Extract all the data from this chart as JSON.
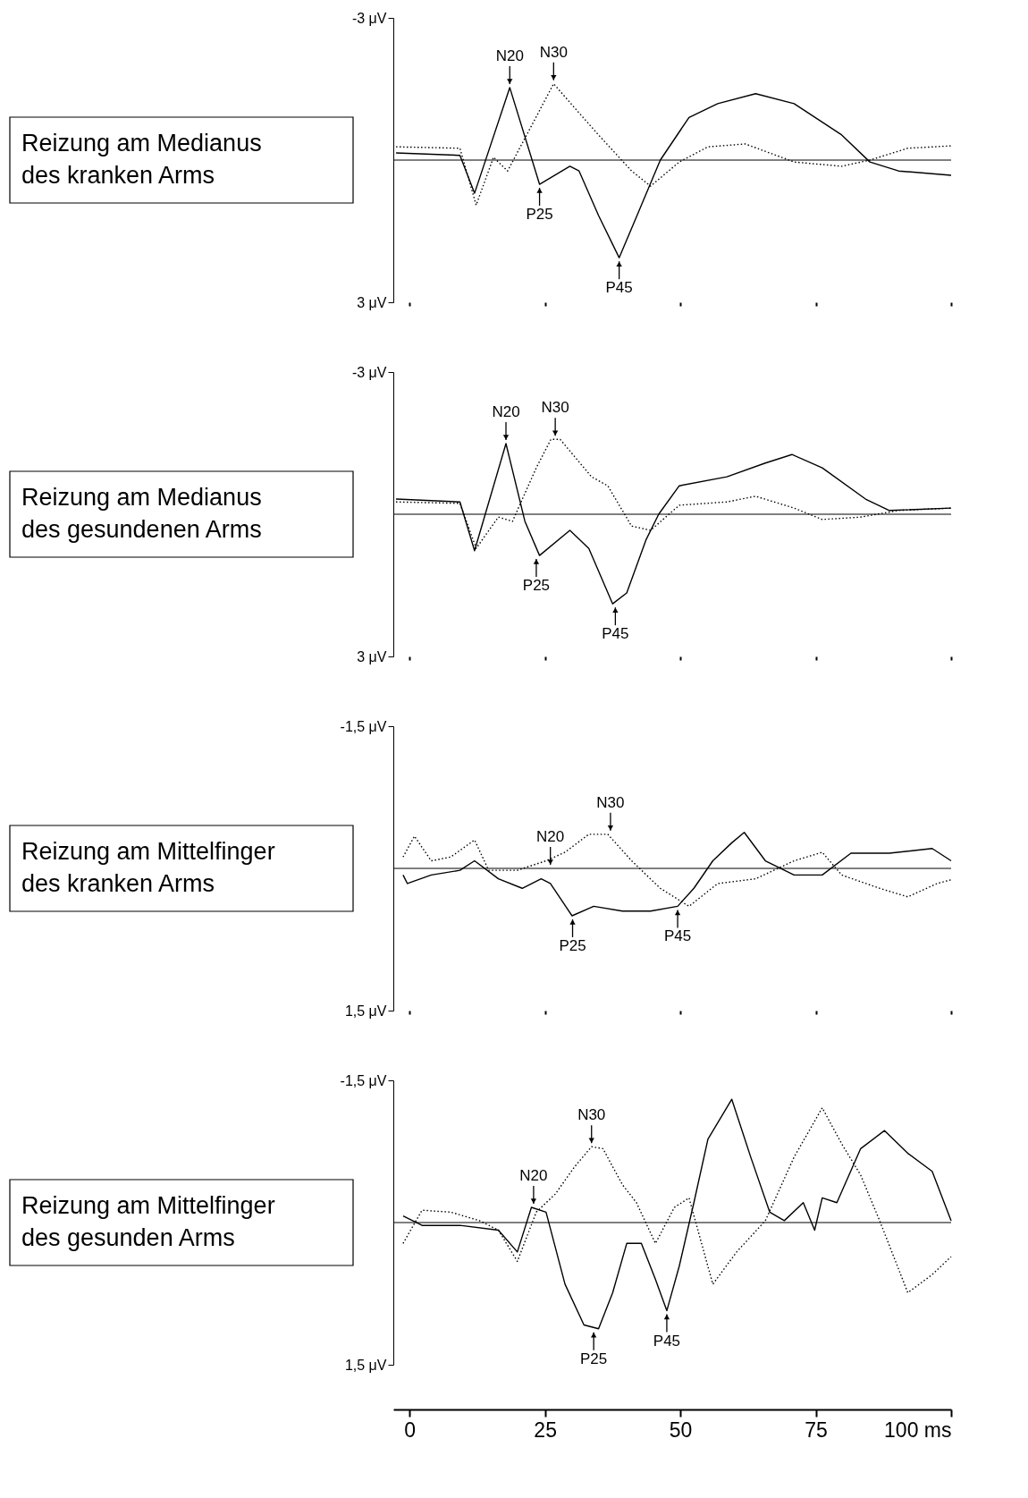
{
  "chart_data": [
    {
      "type": "line",
      "xlim": [
        -3,
        100
      ],
      "xticks": [
        0,
        25,
        50,
        75,
        100
      ],
      "ylim": [
        3,
        -3
      ],
      "yticks": [
        {
          "value": -3,
          "label": "-3 μV"
        },
        {
          "value": 3,
          "label": "3 μV"
        }
      ],
      "tick_labels": "y",
      "legend": false,
      "grid": false,
      "ref_lines": [
        {
          "axis": "y",
          "value": 0
        }
      ],
      "annotations": [
        "Reizung am Medianus\ndes kranken Arms",
        {
          "text": "N20",
          "x": 18.5,
          "y": -1.53
        },
        {
          "text": "N30",
          "x": 26.6,
          "y": -1.61
        },
        {
          "text": "P25",
          "x": 24,
          "y": 0.51
        },
        {
          "text": "P45",
          "x": 38.7,
          "y": 2.06
        }
      ],
      "series": [
        {
          "color": "#000000",
          "line_style": "solid",
          "x": [
            -2.5,
            9.3,
            12,
            18.5,
            24,
            29.6,
            31.3,
            34.9,
            38.7,
            42,
            46.3,
            51.6,
            56.9,
            63.9,
            71,
            79.8,
            85,
            90.3,
            100
          ],
          "values": [
            -0.15,
            -0.1,
            0.7,
            -1.53,
            0.51,
            0.13,
            0.23,
            1.17,
            2.06,
            1.17,
            0,
            -0.9,
            -1.19,
            -1.4,
            -1.19,
            -0.53,
            0.04,
            0.23,
            0.32
          ]
        },
        {
          "color": "#000000",
          "line_style": "dotted",
          "x": [
            -2.5,
            9.3,
            12.3,
            15.5,
            18.1,
            22.5,
            26.6,
            30.5,
            34.9,
            41,
            44.5,
            49.8,
            55.1,
            62,
            71,
            79.8,
            85,
            92,
            100
          ],
          "values": [
            -0.28,
            -0.25,
            0.95,
            -0.06,
            0.23,
            -0.72,
            -1.61,
            -1.1,
            -0.53,
            0.23,
            0.55,
            0.04,
            -0.28,
            -0.34,
            0.04,
            0.13,
            0,
            -0.25,
            -0.3
          ]
        }
      ]
    },
    {
      "type": "line",
      "xlim": [
        -3,
        100
      ],
      "xticks": [
        0,
        25,
        50,
        75,
        100
      ],
      "ylim": [
        3,
        -3
      ],
      "yticks": [
        {
          "value": -3,
          "label": "-3 μV"
        },
        {
          "value": 3,
          "label": "3 μV"
        }
      ],
      "tick_labels": "y",
      "legend": false,
      "grid": false,
      "ref_lines": [
        {
          "axis": "y",
          "value": 0
        }
      ],
      "annotations": [
        "Reizung am Medianus\ndes gesundenen Arms",
        {
          "text": "N20",
          "x": 17.8,
          "y": -1.49
        },
        {
          "text": "N30",
          "x": 26.9,
          "y": -1.58
        },
        {
          "text": "P25",
          "x": 23.4,
          "y": 0.87
        },
        {
          "text": "P45",
          "x": 38,
          "y": 1.89
        }
      ],
      "series": [
        {
          "color": "#000000",
          "line_style": "solid",
          "x": [
            -2.5,
            9.3,
            12,
            17.8,
            21.3,
            24,
            29.6,
            33.1,
            37.5,
            40.1,
            43.7,
            46,
            49.8,
            58.6,
            65.7,
            70.6,
            76.2,
            84.2,
            88.6,
            100
          ],
          "values": [
            -0.32,
            -0.26,
            0.77,
            -1.49,
            0.15,
            0.87,
            0.34,
            0.72,
            1.89,
            1.66,
            0.53,
            0,
            -0.6,
            -0.79,
            -1.08,
            -1.26,
            -0.98,
            -0.32,
            -0.08,
            -0.13
          ]
        },
        {
          "color": "#000000",
          "line_style": "dotted",
          "x": [
            -2.5,
            9.3,
            12.3,
            16.4,
            19,
            23.4,
            26.1,
            27.8,
            33.6,
            36.6,
            41,
            44.5,
            49.8,
            58.6,
            63.9,
            71,
            76.2,
            83.3,
            90.3,
            100
          ],
          "values": [
            -0.26,
            -0.23,
            0.72,
            0.06,
            0.15,
            -0.98,
            -1.58,
            -1.58,
            -0.79,
            -0.6,
            0.25,
            0.34,
            -0.19,
            -0.26,
            -0.38,
            -0.13,
            0.11,
            0.06,
            -0.08,
            -0.13
          ]
        }
      ]
    },
    {
      "type": "line",
      "xlim": [
        -3,
        100
      ],
      "xticks": [
        0,
        25,
        50,
        75,
        100
      ],
      "ylim": [
        1.5,
        -1.5
      ],
      "yticks": [
        {
          "value": -1.5,
          "label": "-1,5 μV"
        },
        {
          "value": 1.5,
          "label": "1,5 μV"
        }
      ],
      "tick_labels": "y",
      "legend": false,
      "grid": false,
      "ref_lines": [
        {
          "axis": "y",
          "value": 0
        }
      ],
      "annotations": [
        "Reizung am Mittelfinger\ndes kranken Arms",
        {
          "text": "N20",
          "x": 26,
          "y": 0
        },
        {
          "text": "N30",
          "x": 37.1,
          "y": -0.36
        },
        {
          "text": "P25",
          "x": 30.1,
          "y": 0.5
        },
        {
          "text": "P45",
          "x": 49.5,
          "y": 0.4
        }
      ],
      "series": [
        {
          "color": "#000000",
          "line_style": "solid",
          "x": [
            -1.2,
            -0.4,
            4,
            9.3,
            12,
            16.4,
            20.8,
            24.3,
            26,
            30,
            34,
            39.3,
            44.5,
            49.5,
            52.5,
            56,
            59.5,
            61.8,
            65.7,
            71,
            76.2,
            81.5,
            88.6,
            96.5,
            100
          ],
          "values": [
            0.07,
            0.16,
            0.07,
            0.02,
            -0.08,
            0.11,
            0.21,
            0.11,
            0.16,
            0.5,
            0.4,
            0.45,
            0.45,
            0.4,
            0.21,
            -0.08,
            -0.27,
            -0.38,
            -0.08,
            0.07,
            0.07,
            -0.16,
            -0.16,
            -0.21,
            -0.08
          ]
        },
        {
          "color": "#000000",
          "line_style": "dotted",
          "x": [
            -1.2,
            0.9,
            4,
            7.6,
            12,
            14.6,
            19.9,
            25.2,
            28.7,
            33.1,
            36.6,
            41,
            46.3,
            51.6,
            56.9,
            63.9,
            71,
            76.2,
            79.8,
            86.8,
            92,
            97.4,
            100
          ],
          "values": [
            -0.12,
            -0.34,
            -0.08,
            -0.12,
            -0.3,
            0.02,
            0.02,
            -0.08,
            -0.17,
            -0.36,
            -0.36,
            -0.08,
            0.21,
            0.4,
            0.16,
            0.11,
            -0.08,
            -0.17,
            0.07,
            0.21,
            0.3,
            0.16,
            0.12
          ]
        }
      ]
    },
    {
      "type": "line",
      "xlim": [
        -3,
        100
      ],
      "ylim": [
        1.5,
        -1.5
      ],
      "yticks": [
        {
          "value": -1.5,
          "label": "-1,5 μV"
        },
        {
          "value": 1.5,
          "label": "1,5 μV"
        }
      ],
      "xticks": [
        0,
        25,
        50,
        75,
        {
          "value": 100,
          "label": "100 ms"
        }
      ],
      "legend": false,
      "grid": false,
      "ref_lines": [
        {
          "axis": "y",
          "value": 0
        }
      ],
      "annotations": [
        "Reizung am Mittelfinger\ndes gesunden Arms",
        {
          "text": "N20",
          "x": 22.9,
          "y": -0.16
        },
        {
          "text": "N30",
          "x": 33.6,
          "y": -0.8
        },
        {
          "text": "P25",
          "x": 34,
          "y": 1.12
        },
        {
          "text": "P45",
          "x": 47.5,
          "y": 0.93
        }
      ],
      "series": [
        {
          "color": "#000000",
          "line_style": "solid",
          "x": [
            -1.2,
            2.3,
            9.3,
            16.4,
            19.9,
            22.5,
            25.2,
            28.7,
            32.2,
            34.9,
            37.5,
            40.1,
            42.8,
            45.4,
            47.5,
            49.8,
            52.5,
            55.1,
            59.5,
            63,
            66.5,
            69.2,
            72.7,
            74.8,
            76.2,
            78.9,
            83.3,
            87.7,
            92,
            96.5,
            100
          ],
          "values": [
            -0.07,
            0.03,
            0.03,
            0.08,
            0.31,
            -0.16,
            -0.11,
            0.65,
            1.08,
            1.12,
            0.74,
            0.22,
            0.22,
            0.6,
            0.93,
            0.46,
            -0.21,
            -0.88,
            -1.3,
            -0.69,
            -0.11,
            -0.02,
            -0.21,
            0.08,
            -0.26,
            -0.21,
            -0.78,
            -0.97,
            -0.73,
            -0.54,
            -0.02
          ]
        },
        {
          "color": "#000000",
          "line_style": "dotted",
          "x": [
            -1.2,
            2.3,
            7.6,
            12.9,
            16.4,
            19.9,
            23.4,
            26.9,
            30.5,
            33.6,
            35.7,
            39.3,
            41.9,
            45.4,
            48.9,
            51.6,
            56,
            60.4,
            65.7,
            71,
            76.2,
            79.8,
            83.3,
            86.8,
            92,
            96.5,
            100
          ],
          "values": [
            0.22,
            -0.13,
            -0.11,
            -0.02,
            0.08,
            0.41,
            -0.11,
            -0.3,
            -0.59,
            -0.8,
            -0.78,
            -0.4,
            -0.21,
            0.22,
            -0.16,
            -0.26,
            0.65,
            0.31,
            -0.02,
            -0.69,
            -1.21,
            -0.83,
            -0.5,
            -0.02,
            0.74,
            0.55,
            0.36
          ]
        }
      ]
    }
  ]
}
